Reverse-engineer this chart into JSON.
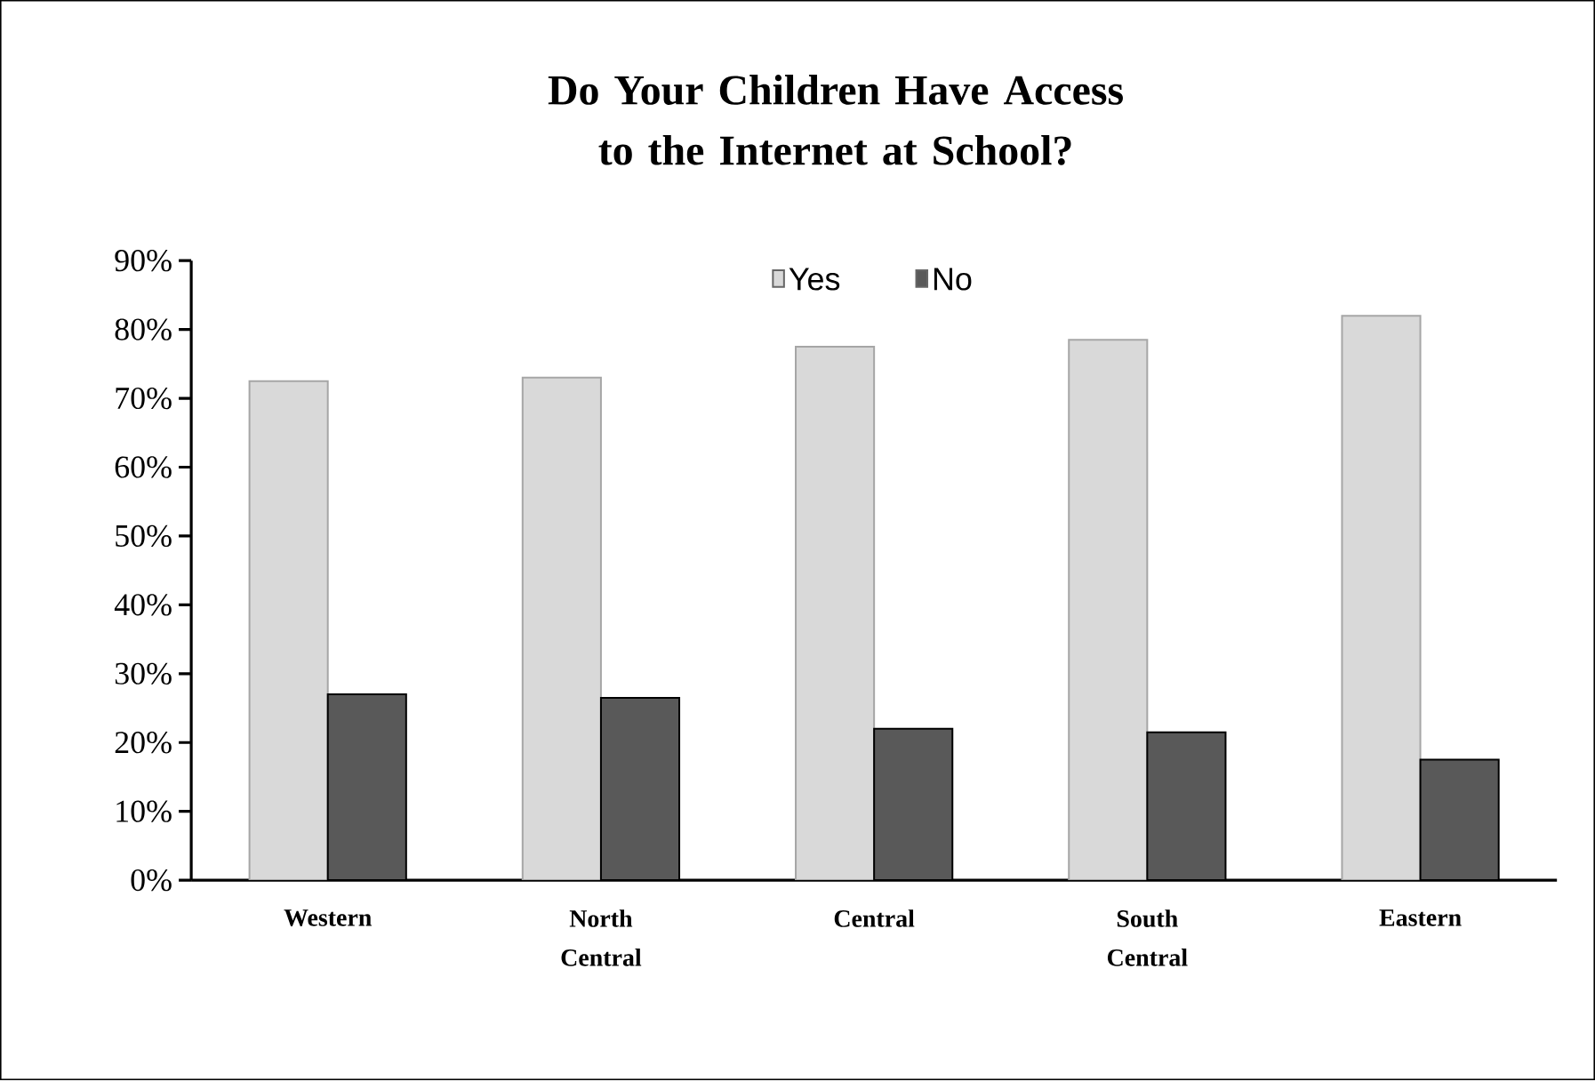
{
  "chart_data": {
    "type": "bar",
    "title": "Do Your Children Have Access to the Internet at School?",
    "categories": [
      "Western",
      "North Central",
      "Central",
      "South Central",
      "Eastern"
    ],
    "series": [
      {
        "name": "Yes",
        "color": "#d9d9d9",
        "values": [
          72.5,
          73,
          77.5,
          78.5,
          82
        ]
      },
      {
        "name": "No",
        "color": "#595959",
        "values": [
          27,
          26.5,
          22,
          21.5,
          17.5
        ]
      }
    ],
    "ylim": [
      0,
      90
    ],
    "yticks": [
      {
        "value": 0,
        "label": "0%"
      },
      {
        "value": 10,
        "label": "10%"
      },
      {
        "value": 20,
        "label": "20%"
      },
      {
        "value": 30,
        "label": "30%"
      },
      {
        "value": 40,
        "label": "40%"
      },
      {
        "value": 50,
        "label": "50%"
      },
      {
        "value": 60,
        "label": "60%"
      },
      {
        "value": 70,
        "label": "70%"
      },
      {
        "value": 80,
        "label": "80%"
      },
      {
        "value": 90,
        "label": "90%"
      }
    ],
    "grid": false,
    "legend": "top"
  }
}
